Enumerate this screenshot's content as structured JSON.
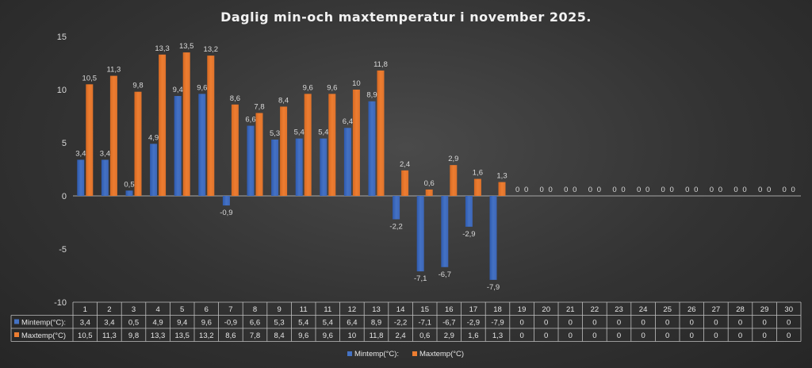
{
  "chart_data": {
    "type": "bar",
    "title": "Daglig min-och maxtemperatur i november 2025.",
    "categories": [
      "1",
      "2",
      "3",
      "4",
      "5",
      "6",
      "7",
      "8",
      "9",
      "11",
      "11",
      "12",
      "13",
      "14",
      "15",
      "16",
      "17",
      "18",
      "19",
      "20",
      "21",
      "22",
      "23",
      "24",
      "25",
      "26",
      "27",
      "28",
      "29",
      "30"
    ],
    "series": [
      {
        "name": "Mintemp(°C):",
        "color": "#4472c4",
        "values": [
          3.4,
          3.4,
          0.5,
          4.9,
          9.4,
          9.6,
          -0.9,
          6.6,
          5.3,
          5.4,
          5.4,
          6.4,
          8.9,
          -2.2,
          -7.1,
          -6.7,
          -2.9,
          -7.9,
          0,
          0,
          0,
          0,
          0,
          0,
          0,
          0,
          0,
          0,
          0,
          0
        ],
        "labels": [
          "3,4",
          "3,4",
          "0,5",
          "4,9",
          "9,4",
          "9,6",
          "-0,9",
          "6,6",
          "5,3",
          "5,4",
          "5,4",
          "6,4",
          "8,9",
          "-2,2",
          "-7,1",
          "-6,7",
          "-2,9",
          "-7,9",
          "0",
          "0",
          "0",
          "0",
          "0",
          "0",
          "0",
          "0",
          "0",
          "0",
          "0",
          "0"
        ],
        "table_labels": [
          "3,4",
          "3,4",
          "0,5",
          "4,9",
          "9,4",
          "9,6",
          "-0,9",
          "6,6",
          "5,3",
          "5,4",
          "5,4",
          "6,4",
          "8,9",
          "-2,2",
          "-7,1",
          "-6,7",
          "-2,9",
          "-7,9",
          "0",
          "0",
          "0",
          "0",
          "0",
          "0",
          "0",
          "0",
          "0",
          "0",
          "0",
          "0"
        ]
      },
      {
        "name": "Maxtemp(°C)",
        "color": "#ed7d31",
        "values": [
          10.5,
          11.3,
          9.8,
          13.3,
          13.5,
          13.2,
          8.6,
          7.8,
          8.4,
          9.6,
          9.6,
          10,
          11.8,
          2.4,
          0.6,
          2.9,
          1.6,
          1.3,
          0,
          0,
          0,
          0,
          0,
          0,
          0,
          0,
          0,
          0,
          0,
          0
        ],
        "labels": [
          "10,5",
          "11,3",
          "9,8",
          "13,3",
          "13,5",
          "13,2",
          "8,6",
          "7,8",
          "8,4",
          "9,6",
          "9,6",
          "10",
          "11,8",
          "2,4",
          "0,6",
          "2,9",
          "1,6",
          "1,3",
          "0",
          "0",
          "0",
          "0",
          "0",
          "0",
          "0",
          "0",
          "0",
          "0",
          "0",
          "0"
        ],
        "table_labels": [
          "10,5",
          "11,3",
          "9,8",
          "13,3",
          "13,5",
          "13,2",
          "8,6",
          "7,8",
          "8,4",
          "9,6",
          "9,6",
          "10",
          "11,8",
          "2,4",
          "0,6",
          "2,9",
          "1,6",
          "1,3",
          "0",
          "0",
          "0",
          "0",
          "0",
          "0",
          "0",
          "0",
          "0",
          "0",
          "0",
          "0"
        ]
      }
    ],
    "yticks": [
      "15",
      "10",
      "5",
      "0",
      "-5",
      "-10"
    ],
    "ytick_values": [
      15,
      10,
      5,
      0,
      -5,
      -10
    ],
    "ylim": [
      -10,
      15
    ],
    "grid": false,
    "legend": "bottom",
    "data_table": true,
    "xlabel": "",
    "ylabel": ""
  }
}
